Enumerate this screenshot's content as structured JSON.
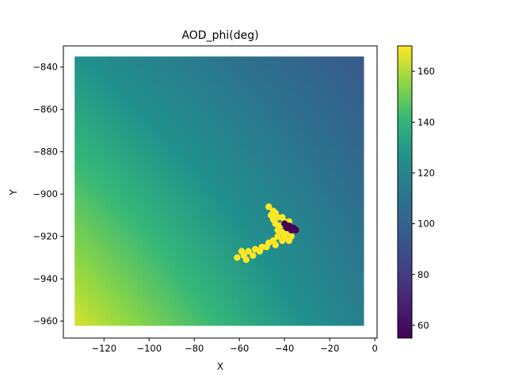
{
  "chart_data": {
    "type": "scatter",
    "title": "AOD_phi(deg)",
    "xlabel": "X",
    "ylabel": "Y",
    "xlim": [
      -138,
      1
    ],
    "ylim": [
      -968,
      -830
    ],
    "x_ticks": [
      -120,
      -100,
      -80,
      -60,
      -40,
      -20,
      0
    ],
    "x_tick_labels": [
      "−120",
      "−100",
      "−80",
      "−60",
      "−40",
      "−20",
      "0"
    ],
    "y_ticks": [
      -840,
      -860,
      -880,
      -900,
      -920,
      -940,
      -960
    ],
    "y_tick_labels": [
      "−840",
      "−860",
      "−880",
      "−900",
      "−920",
      "−940",
      "−960"
    ],
    "grid": false,
    "colormap": "viridis",
    "clim": [
      55,
      170
    ],
    "colorbar_ticks": [
      60,
      80,
      100,
      120,
      140,
      160
    ],
    "colorbar_tick_labels": [
      "60",
      "80",
      "100",
      "120",
      "140",
      "160"
    ],
    "field": {
      "x_range": [
        -133,
        -5
      ],
      "y_range": [
        -962,
        -835
      ],
      "corners": {
        "top_left": 127,
        "top_right": 95,
        "bottom_left": 165,
        "bottom_right": 117
      }
    },
    "anomaly_high": {
      "value": 170,
      "points": [
        [
          -47,
          -906
        ],
        [
          -45,
          -908
        ],
        [
          -44,
          -909
        ],
        [
          -46,
          -910
        ],
        [
          -43,
          -911
        ],
        [
          -41,
          -911
        ],
        [
          -45,
          -912
        ],
        [
          -40,
          -913
        ],
        [
          -38,
          -913
        ],
        [
          -44,
          -914
        ],
        [
          -42,
          -915
        ],
        [
          -43,
          -917
        ],
        [
          -41,
          -918
        ],
        [
          -39,
          -918
        ],
        [
          -40,
          -920
        ],
        [
          -37,
          -920
        ],
        [
          -43,
          -920
        ],
        [
          -45,
          -922
        ],
        [
          -41,
          -922
        ],
        [
          -38,
          -922
        ],
        [
          -47,
          -923
        ],
        [
          -44,
          -924
        ],
        [
          -50,
          -925
        ],
        [
          -48,
          -925
        ],
        [
          -53,
          -926
        ],
        [
          -51,
          -927
        ],
        [
          -56,
          -927
        ],
        [
          -59,
          -927
        ],
        [
          -54,
          -929
        ],
        [
          -58,
          -929
        ],
        [
          -61,
          -930
        ],
        [
          -57,
          -931
        ]
      ]
    },
    "anomaly_low": {
      "value": 56,
      "points": [
        [
          -40,
          -914
        ],
        [
          -38,
          -915
        ],
        [
          -36,
          -916
        ],
        [
          -37,
          -917
        ],
        [
          -35,
          -917
        ],
        [
          -39,
          -916
        ]
      ]
    }
  }
}
